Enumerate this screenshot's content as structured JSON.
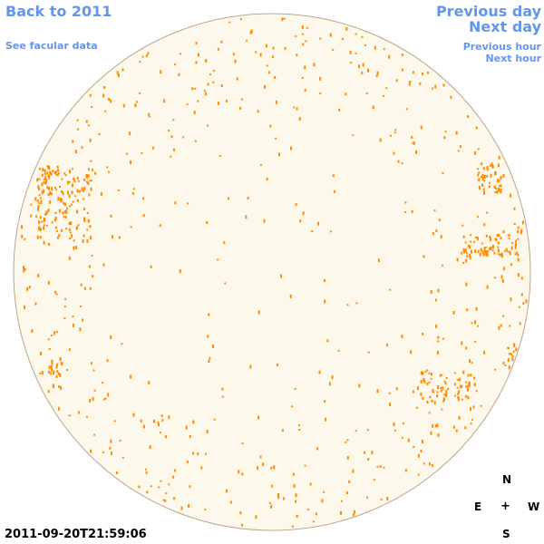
{
  "nav": {
    "back": "Back to 2011",
    "facular": "See facular data",
    "previous_day": "Previous day",
    "next_day": "Next day",
    "previous_hour": "Previous hour",
    "next_hour": "Next hour"
  },
  "timestamp": "2011-09-20T21:59:06",
  "compass": {
    "n": "N",
    "e": "E",
    "center": "+",
    "w": "W",
    "s": "S"
  },
  "colors": {
    "link": "#6495ed",
    "disk_fill": "#fdf8ec",
    "disk_edge": "#bba58c",
    "feature": "#ff8c00"
  }
}
